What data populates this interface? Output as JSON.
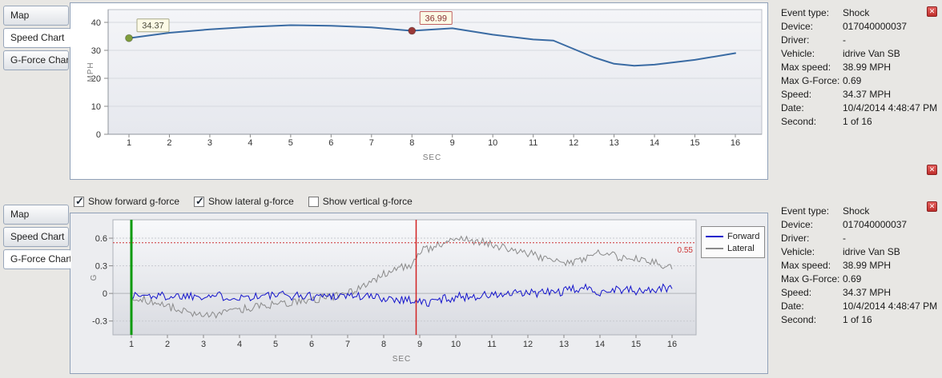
{
  "info": {
    "rows": [
      {
        "label": "Event type:",
        "value": "Shock"
      },
      {
        "label": "Device:",
        "value": "017040000037"
      },
      {
        "label": "Driver:",
        "value": "-"
      },
      {
        "label": "Vehicle:",
        "value": "idrive Van SB"
      },
      {
        "label": "Max speed:",
        "value": "38.99 MPH"
      },
      {
        "label": "Max G-Force:",
        "value": "0.69"
      },
      {
        "label": "Speed:",
        "value": "34.37 MPH"
      },
      {
        "label": "Date:",
        "value": "10/4/2014 4:48:47 PM"
      },
      {
        "label": "Second:",
        "value": "1 of 16"
      }
    ]
  },
  "top_panel": {
    "tabs": [
      {
        "label": "Map",
        "selected": false
      },
      {
        "label": "Speed Chart",
        "selected": true
      },
      {
        "label": "G-Force Chart",
        "selected": false
      }
    ]
  },
  "bottom_panel": {
    "tabs": [
      {
        "label": "Map",
        "selected": false
      },
      {
        "label": "Speed Chart",
        "selected": false
      },
      {
        "label": "G-Force Chart",
        "selected": true
      }
    ],
    "checkboxes": [
      {
        "label": "Show forward g-force",
        "checked": true
      },
      {
        "label": "Show lateral g-force",
        "checked": true
      },
      {
        "label": "Show vertical g-force",
        "checked": false
      }
    ]
  },
  "chart_data": [
    {
      "type": "line",
      "title": "",
      "xlabel": "SEC",
      "ylabel": "MPH",
      "ylim": [
        0,
        40
      ],
      "yticks": [
        0,
        10,
        20,
        30,
        40
      ],
      "xticks": [
        1,
        2,
        3,
        4,
        5,
        6,
        7,
        8,
        9,
        10,
        11,
        12,
        13,
        14,
        15,
        16
      ],
      "x": [
        1,
        2,
        3,
        4,
        5,
        6,
        7,
        8,
        9,
        10,
        11,
        11.5,
        12.5,
        13,
        13.5,
        14,
        15,
        16
      ],
      "values": [
        34.37,
        36.3,
        37.5,
        38.4,
        38.99,
        38.8,
        38.2,
        36.99,
        37.9,
        35.6,
        33.9,
        33.5,
        27.5,
        25.2,
        24.5,
        24.9,
        26.6,
        29.0
      ],
      "line_color": "#3a6ba3",
      "grid": "horizontal",
      "markers": [
        {
          "x": 1,
          "y": 34.37,
          "color": "#7f9d3c",
          "label": "34.37",
          "label_border": "#a8a888",
          "label_color": "#4a4a3a"
        },
        {
          "x": 8,
          "y": 36.99,
          "color": "#993837",
          "label": "36.99",
          "label_border": "#c06060",
          "label_color": "#8a3030"
        }
      ]
    },
    {
      "type": "line",
      "title": "",
      "xlabel": "SEC",
      "ylabel": "G",
      "ylim": [
        -0.45,
        0.8
      ],
      "yticks": [
        -0.3,
        0,
        0.3,
        0.6
      ],
      "xticks": [
        1,
        2,
        3,
        4,
        5,
        6,
        7,
        8,
        9,
        10,
        11,
        12,
        13,
        14,
        15,
        16
      ],
      "legend_position": "right",
      "threshold": {
        "value": 0.55,
        "label": "0.55",
        "color": "#cc3333"
      },
      "vlines": [
        {
          "x": 1,
          "color": "#0a9a0a",
          "width": 3
        },
        {
          "x": 8.9,
          "color": "#d22222",
          "width": 1.5
        }
      ],
      "seed": 1337,
      "samples_per_sec": 20,
      "series": [
        {
          "name": "Forward",
          "color": "#1414cc",
          "noise": 0.05,
          "envelope_x": [
            1,
            2,
            3,
            4,
            5,
            6,
            7,
            8,
            8.8,
            9.2,
            9.6,
            10,
            11,
            12,
            13,
            13.5,
            14,
            14.5,
            15,
            15.5,
            16
          ],
          "envelope_y": [
            -0.02,
            -0.03,
            -0.02,
            -0.04,
            -0.02,
            -0.03,
            -0.02,
            -0.05,
            -0.07,
            -0.11,
            -0.06,
            -0.04,
            -0.02,
            0.0,
            0.02,
            0.06,
            0.02,
            0.05,
            0.02,
            0.04,
            0.06
          ]
        },
        {
          "name": "Lateral",
          "color": "#8a8a8a",
          "noise": 0.045,
          "envelope_x": [
            1,
            1.6,
            2.2,
            2.8,
            3.2,
            3.8,
            4.4,
            5,
            5.6,
            6.2,
            6.8,
            7.2,
            7.6,
            8,
            8.4,
            8.8,
            8.95,
            9.3,
            9.7,
            10.1,
            10.5,
            11,
            11.5,
            12,
            12.5,
            13,
            13.5,
            14,
            14.5,
            15,
            15.5,
            16
          ],
          "envelope_y": [
            -0.03,
            -0.1,
            -0.16,
            -0.23,
            -0.24,
            -0.2,
            -0.14,
            -0.12,
            -0.1,
            -0.06,
            -0.02,
            0.02,
            0.1,
            0.22,
            0.27,
            0.3,
            0.44,
            0.5,
            0.55,
            0.62,
            0.57,
            0.54,
            0.48,
            0.44,
            0.38,
            0.33,
            0.37,
            0.44,
            0.4,
            0.37,
            0.33,
            0.3
          ]
        }
      ]
    }
  ]
}
